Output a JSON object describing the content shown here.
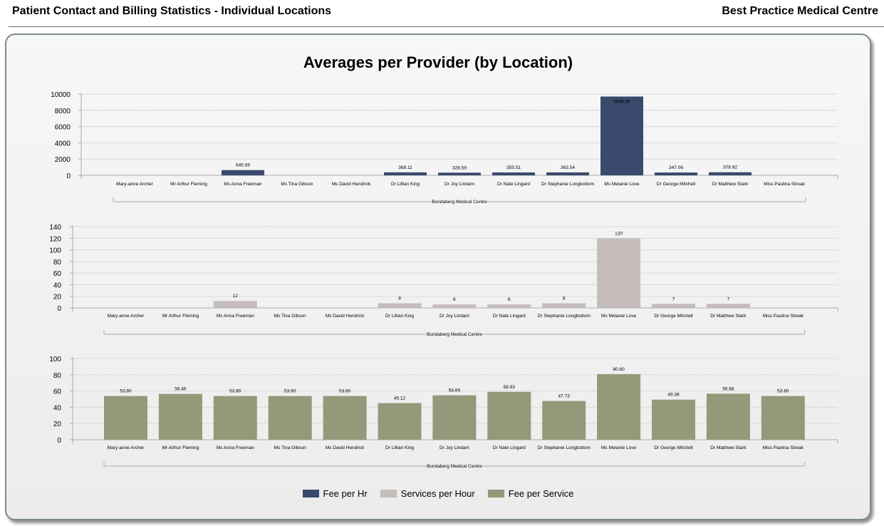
{
  "header": {
    "report_title": "Patient Contact and Billing Statistics - Individual Locations",
    "organization": "Best Practice Medical Centre"
  },
  "panel": {
    "title": "Averages per Provider (by Location)"
  },
  "colors": {
    "fee_per_hr": "#394a6c",
    "services_per_hour": "#c5bcbc",
    "fee_per_service": "#939a7a",
    "gridline": "#dadada",
    "axis": "#aaaaaa"
  },
  "legend": [
    {
      "label": "Fee per Hr",
      "color_key": "fee_per_hr"
    },
    {
      "label": "Services per Hour",
      "color_key": "services_per_hour"
    },
    {
      "label": "Fee per Service",
      "color_key": "fee_per_service"
    }
  ],
  "chart_data": [
    {
      "type": "bar",
      "series_name": "Fee per Hr",
      "color_key": "fee_per_hr",
      "group_label": "Bundaberg Medical Centre",
      "categories": [
        "Mary-anne Archer",
        "Mr Arthur Fleming",
        "Ms Anna Freeman",
        "Ms Tina Gibson",
        "Ms David Hendrick",
        "Dr Lillian King",
        "Dr Joy Lindam",
        "Dr Nate Lingard",
        "Dr Stephanie Longbottom",
        "Ms Melanie Love",
        "Dr George Mitchell",
        "Dr Matthew Stark",
        "Miss Paulina Streak"
      ],
      "values": [
        null,
        null,
        645.69,
        null,
        null,
        368.11,
        328.59,
        355.51,
        363.54,
        9696.56,
        347.06,
        378.92,
        null
      ],
      "labels": [
        "",
        "",
        "645.69",
        "",
        "",
        "368.11",
        "328.59",
        "355.51",
        "363.54",
        "9696.56",
        "347.06",
        "378.92",
        ""
      ],
      "yticks": [
        "0",
        "2000",
        "4000",
        "6000",
        "8000",
        "10000"
      ],
      "ylim": [
        0,
        10000
      ],
      "grid": true
    },
    {
      "type": "bar",
      "series_name": "Services per Hour",
      "color_key": "services_per_hour",
      "group_label": "Bundaberg Medical Centre",
      "categories": [
        "Mary-anne Archer",
        "Mr Arthur Fleming",
        "Ms Anna Freeman",
        "Ms Tina Gibson",
        "Ms David Hendrick",
        "Dr Lillian King",
        "Dr Joy Lindam",
        "Dr Nate Lingard",
        "Dr Stephanie Longbottom",
        "Ms Melanie Love",
        "Dr George Mitchell",
        "Dr Matthew Stark",
        "Miss Paulina Streak"
      ],
      "values": [
        null,
        null,
        12,
        null,
        null,
        8,
        6,
        6,
        8,
        120,
        7,
        7,
        null
      ],
      "labels": [
        "",
        "",
        "12",
        "",
        "",
        "8",
        "6",
        "6",
        "8",
        "120",
        "7",
        "7",
        ""
      ],
      "yticks": [
        "0",
        "20",
        "40",
        "60",
        "80",
        "100",
        "120",
        "140"
      ],
      "ylim": [
        0,
        140
      ],
      "grid": true
    },
    {
      "type": "bar",
      "series_name": "Fee per Service",
      "color_key": "fee_per_service",
      "group_label": "Bundaberg Medical Centre",
      "categories": [
        "Mary-anne Archer",
        "Mr Arthur Fleming",
        "Ms Anna Freeman",
        "Ms Tina Gibson",
        "Ms David Hendrick",
        "Dr Lillian King",
        "Dr Joy Lindam",
        "Dr Nate Lingard",
        "Dr Stephanie Longbottom",
        "Ms Melanie Love",
        "Dr George Mitchell",
        "Dr Matthew Stark",
        "Miss Paulina Streak"
      ],
      "values": [
        53.8,
        56.46,
        53.8,
        53.8,
        53.8,
        45.12,
        54.69,
        58.93,
        47.73,
        80.8,
        49.38,
        56.68,
        53.8
      ],
      "labels": [
        "53.80",
        "56.46",
        "53.80",
        "53.80",
        "53.80",
        "45.12",
        "54.69",
        "58.93",
        "47.73",
        "80.80",
        "49.38",
        "56.68",
        "53.80"
      ],
      "yticks": [
        "0",
        "20",
        "40",
        "60",
        "80",
        "100"
      ],
      "ylim": [
        0,
        100
      ],
      "grid": true
    }
  ]
}
